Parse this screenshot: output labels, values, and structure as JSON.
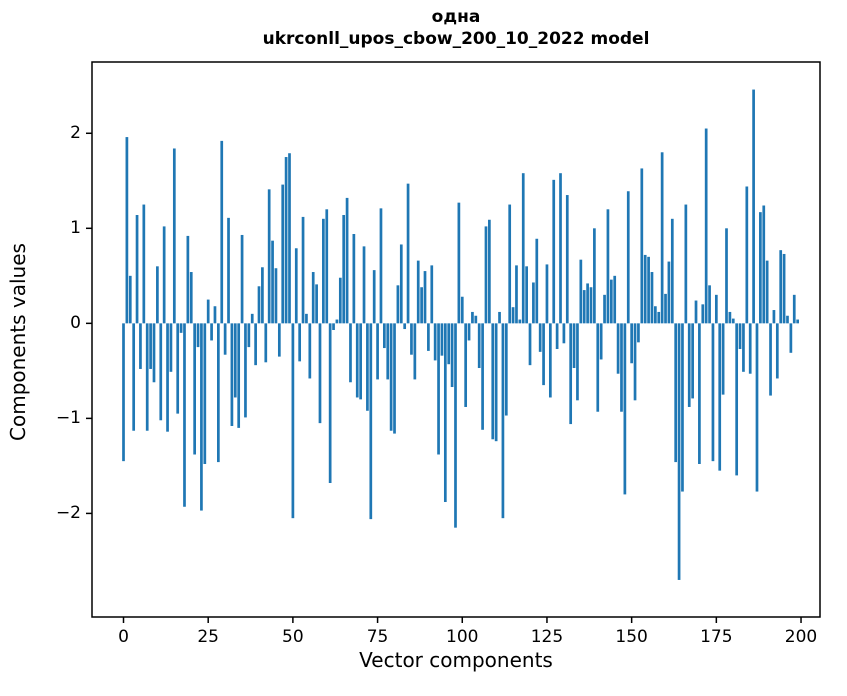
{
  "figure": {
    "background": "#ffffff",
    "frame_color": "#000000"
  },
  "chart_data": {
    "type": "bar",
    "title_line1": "одна",
    "title_line2": "ukrconll_upos_cbow_200_10_2022 model",
    "xlabel": "Vector components",
    "ylabel": "Components values",
    "bar_color": "#1f77b4",
    "grid": false,
    "legend_position": "none",
    "x_tick_values": [
      0,
      25,
      50,
      75,
      100,
      125,
      150,
      175,
      200
    ],
    "x_tick_labels": [
      "0",
      "25",
      "50",
      "75",
      "100",
      "125",
      "150",
      "175",
      "200"
    ],
    "y_tick_values": [
      2,
      1,
      0,
      -1,
      -2
    ],
    "y_tick_labels": [
      "2",
      "1",
      "0",
      "−1",
      "−2"
    ],
    "xlim": [
      -9.3,
      205.6
    ],
    "ylim": [
      -3.09,
      2.75
    ],
    "bar_width_units": 0.8,
    "values": [
      -1.45,
      1.96,
      0.5,
      -1.13,
      1.14,
      -0.48,
      1.25,
      -1.13,
      -0.48,
      -0.62,
      0.6,
      -1.02,
      1.02,
      -1.14,
      -0.51,
      1.84,
      -0.95,
      -0.1,
      -1.93,
      0.92,
      0.54,
      -1.38,
      -0.25,
      -1.97,
      -1.48,
      0.25,
      -0.18,
      0.18,
      -1.46,
      1.92,
      -0.33,
      1.11,
      -1.08,
      -0.78,
      -1.1,
      0.93,
      -0.99,
      -0.25,
      0.1,
      -0.44,
      0.39,
      0.59,
      -0.41,
      1.41,
      0.87,
      0.58,
      -0.35,
      1.46,
      1.75,
      1.79,
      -2.05,
      0.79,
      -0.4,
      1.12,
      0.1,
      -0.58,
      0.54,
      0.41,
      -1.05,
      1.1,
      1.2,
      -1.68,
      -0.07,
      0.04,
      0.48,
      1.14,
      1.32,
      -0.62,
      0.94,
      -0.78,
      -0.8,
      0.81,
      -0.92,
      -2.06,
      0.56,
      -0.59,
      1.21,
      -0.26,
      -0.59,
      -1.13,
      -1.16,
      0.4,
      0.83,
      -0.06,
      1.47,
      -0.33,
      -0.59,
      0.66,
      0.38,
      0.55,
      -0.29,
      0.61,
      -0.39,
      -1.38,
      -0.34,
      -1.88,
      -0.43,
      -0.67,
      -2.15,
      1.27,
      0.28,
      -0.88,
      -0.18,
      0.12,
      0.08,
      -0.47,
      -1.12,
      1.02,
      1.09,
      -1.22,
      -1.24,
      0.12,
      -2.05,
      -0.97,
      1.25,
      0.17,
      0.61,
      0.04,
      1.58,
      0.6,
      -0.44,
      0.43,
      0.89,
      -0.3,
      -0.65,
      0.62,
      -0.78,
      1.51,
      -0.27,
      1.58,
      -0.21,
      1.35,
      -1.06,
      -0.47,
      -0.81,
      0.67,
      0.35,
      0.42,
      0.38,
      1.0,
      -0.93,
      -0.38,
      0.3,
      1.2,
      0.46,
      0.5,
      -0.53,
      -0.93,
      -1.8,
      1.39,
      -0.42,
      -0.81,
      -0.2,
      1.63,
      0.72,
      0.7,
      0.54,
      0.18,
      0.12,
      1.8,
      0.31,
      0.65,
      1.1,
      -1.46,
      -2.7,
      -1.77,
      1.25,
      -0.88,
      -0.79,
      0.24,
      -1.48,
      0.2,
      2.05,
      0.4,
      -1.45,
      0.3,
      -1.55,
      -0.75,
      1.0,
      0.12,
      0.05,
      -1.6,
      -0.27,
      -0.51,
      1.44,
      -0.53,
      2.46,
      -1.77,
      1.17,
      1.24,
      0.66,
      -0.76,
      0.14,
      -0.58,
      0.77,
      0.73,
      0.08,
      -0.31,
      0.3,
      0.04
    ]
  }
}
